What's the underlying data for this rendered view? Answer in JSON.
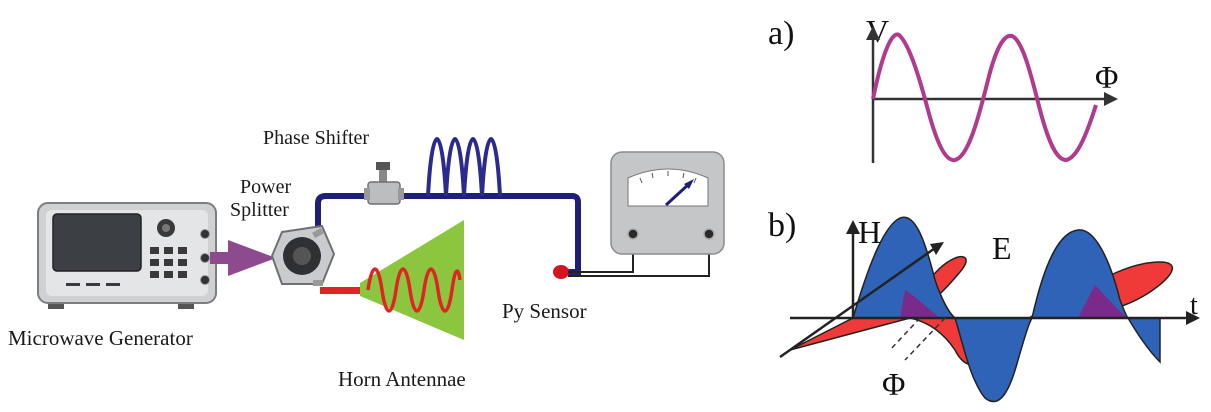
{
  "setup": {
    "labels": {
      "microwave_generator": "Microwave Generator",
      "power_splitter_line1": "Power",
      "power_splitter_line2": "Splitter",
      "phase_shifter": "Phase Shifter",
      "horn_antennae": "Horn Antennae",
      "py_sensor": "Py Sensor"
    },
    "colors": {
      "cable_blue": "#1f1f7a",
      "cable_red": "#e02424",
      "wave_blue": "#2a2a8f",
      "horn_green": "#8cc63f",
      "arrow_purple": "#8e4a8e",
      "device_gray": "#c9c9c9"
    }
  },
  "panel_a": {
    "tag": "a)",
    "y_axis": "V",
    "x_axis": "Φ",
    "wave_color": "#b03a8f"
  },
  "panel_b": {
    "tag": "b)",
    "h_label": "H",
    "e_label": "E",
    "t_label": "t",
    "phi_label": "Φ",
    "h_color": "#2f63b8",
    "e_color": "#f03a3a",
    "overlap_color": "#7a2a8a"
  }
}
